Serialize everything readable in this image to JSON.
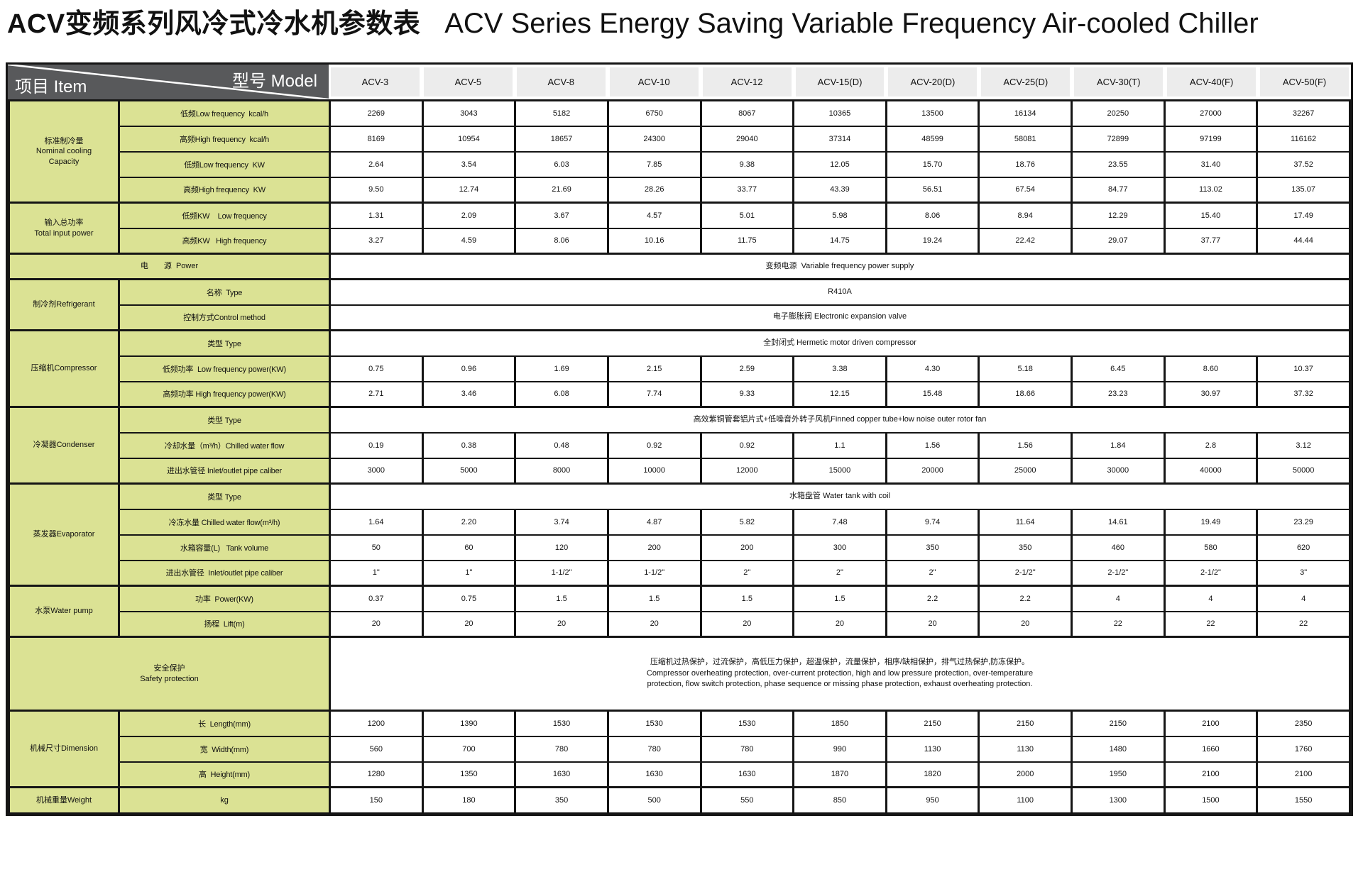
{
  "title": {
    "zh": "ACV变频系列风冷式冷水机参数表",
    "en": "ACV Series Energy Saving Variable Frequency Air-cooled Chiller"
  },
  "colors": {
    "header_dark": "#58595b",
    "header_light": "#ececec",
    "label_green": "#dbe294",
    "border": "#151515"
  },
  "table": {
    "corner": {
      "model_label": "型号  Model",
      "item_label": "项目  Item"
    },
    "models": [
      "ACV-3",
      "ACV-5",
      "ACV-8",
      "ACV-10",
      "ACV-12",
      "ACV-15(D)",
      "ACV-20(D)",
      "ACV-25(D)",
      "ACV-30(T)",
      "ACV-40(F)",
      "ACV-50(F)"
    ],
    "rows": [
      {
        "cat": "标准制冷量\nNominal cooling\nCapacity",
        "catspan": 4,
        "label": "低频Low frequency  kcal/h",
        "cells": [
          "2269",
          "3043",
          "5182",
          "6750",
          "8067",
          "10365",
          "13500",
          "16134",
          "20250",
          "27000",
          "32267"
        ]
      },
      {
        "label": "高频High frequency  kcal/h",
        "cells": [
          "8169",
          "10954",
          "18657",
          "24300",
          "29040",
          "37314",
          "48599",
          "58081",
          "72899",
          "97199",
          "116162"
        ]
      },
      {
        "label": "低频Low frequency  KW",
        "cells": [
          "2.64",
          "3.54",
          "6.03",
          "7.85",
          "9.38",
          "12.05",
          "15.70",
          "18.76",
          "23.55",
          "31.40",
          "37.52"
        ]
      },
      {
        "label": "高频High frequency  KW",
        "cells": [
          "9.50",
          "12.74",
          "21.69",
          "28.26",
          "33.77",
          "43.39",
          "56.51",
          "67.54",
          "84.77",
          "113.02",
          "135.07"
        ]
      },
      {
        "cat": "输入总功率\nTotal input power",
        "catspan": 2,
        "sect": true,
        "label": "低频KW    Low frequency",
        "cells": [
          "1.31",
          "2.09",
          "3.67",
          "4.57",
          "5.01",
          "5.98",
          "8.06",
          "8.94",
          "12.29",
          "15.40",
          "17.49"
        ]
      },
      {
        "label": "高频KW   High frequency",
        "cells": [
          "3.27",
          "4.59",
          "8.06",
          "10.16",
          "11.75",
          "14.75",
          "19.24",
          "22.42",
          "29.07",
          "37.77",
          "44.44"
        ]
      },
      {
        "wide": "电　　源  Power",
        "sect": true,
        "merged": "变频电源  Variable frequency power supply"
      },
      {
        "cat": "制冷剂Refrigerant",
        "catspan": 2,
        "sect": true,
        "label": "名称  Type",
        "merged": "R410A"
      },
      {
        "label": "控制方式Control method",
        "merged": "电子膨胀阀 Electronic expansion valve"
      },
      {
        "cat": "压缩机Compressor",
        "catspan": 3,
        "sect": true,
        "label": "类型 Type",
        "merged": "全封闭式 Hermetic motor driven compressor"
      },
      {
        "label": "低频功率  Low frequency power(KW)",
        "cells": [
          "0.75",
          "0.96",
          "1.69",
          "2.15",
          "2.59",
          "3.38",
          "4.30",
          "5.18",
          "6.45",
          "8.60",
          "10.37"
        ]
      },
      {
        "label": "高频功率 High frequency power(KW)",
        "cells": [
          "2.71",
          "3.46",
          "6.08",
          "7.74",
          "9.33",
          "12.15",
          "15.48",
          "18.66",
          "23.23",
          "30.97",
          "37.32"
        ]
      },
      {
        "cat": "冷凝器Condenser",
        "catspan": 3,
        "sect": true,
        "label": "类型 Type",
        "merged": "高效紫铜管套铝片式+低噪音外转子风机Finned copper tube+low noise outer rotor fan"
      },
      {
        "label": "冷却水量（m³/h）Chilled water flow",
        "cells": [
          "0.19",
          "0.38",
          "0.48",
          "0.92",
          "0.92",
          "1.1",
          "1.56",
          "1.56",
          "1.84",
          "2.8",
          "3.12"
        ]
      },
      {
        "label": "进出水管径 Inlet/outlet pipe caliber",
        "cells": [
          "3000",
          "5000",
          "8000",
          "10000",
          "12000",
          "15000",
          "20000",
          "25000",
          "30000",
          "40000",
          "50000"
        ]
      },
      {
        "cat": "蒸发器Evaporator",
        "catspan": 4,
        "sect": true,
        "label": "类型 Type",
        "merged": "水箱盘管 Water tank with coil"
      },
      {
        "label": "冷冻水量 Chilled water flow(m³/h)",
        "cells": [
          "1.64",
          "2.20",
          "3.74",
          "4.87",
          "5.82",
          "7.48",
          "9.74",
          "11.64",
          "14.61",
          "19.49",
          "23.29"
        ]
      },
      {
        "label": "水箱容量(L)   Tank volume",
        "cells": [
          "50",
          "60",
          "120",
          "200",
          "200",
          "300",
          "350",
          "350",
          "460",
          "580",
          "620"
        ]
      },
      {
        "label": "进出水管径  Inlet/outlet pipe caliber",
        "cells": [
          "1\"",
          "1\"",
          "1-1/2\"",
          "1-1/2\"",
          "2\"",
          "2\"",
          "2\"",
          "2-1/2\"",
          "2-1/2\"",
          "2-1/2\"",
          "3\""
        ]
      },
      {
        "cat": "水泵Water pump",
        "catspan": 2,
        "sect": true,
        "label": "功率  Power(KW)",
        "cells": [
          "0.37",
          "0.75",
          "1.5",
          "1.5",
          "1.5",
          "1.5",
          "2.2",
          "2.2",
          "4",
          "4",
          "4"
        ]
      },
      {
        "label": "扬程  Lift(m)",
        "cells": [
          "20",
          "20",
          "20",
          "20",
          "20",
          "20",
          "20",
          "20",
          "22",
          "22",
          "22"
        ]
      },
      {
        "wide": "安全保护\nSafety protection",
        "sect": true,
        "tall": true,
        "merged": "压缩机过热保护，过流保护，高低压力保护，超温保护，流量保护，相序/缺相保护，排气过热保护,防冻保护。\nCompressor overheating protection, over-current protection, high and low pressure protection, over-temperature\nprotection, flow switch protection, phase sequence or missing phase protection, exhaust overheating protection."
      },
      {
        "cat": "机械尺寸Dimension",
        "catspan": 3,
        "sect": true,
        "label": "长  Length(mm)",
        "cells": [
          "1200",
          "1390",
          "1530",
          "1530",
          "1530",
          "1850",
          "2150",
          "2150",
          "2150",
          "2100",
          "2350"
        ]
      },
      {
        "label": "宽  Width(mm)",
        "cells": [
          "560",
          "700",
          "780",
          "780",
          "780",
          "990",
          "1130",
          "1130",
          "1480",
          "1660",
          "1760"
        ]
      },
      {
        "label": "高  Height(mm)",
        "cells": [
          "1280",
          "1350",
          "1630",
          "1630",
          "1630",
          "1870",
          "1820",
          "2000",
          "1950",
          "2100",
          "2100"
        ]
      },
      {
        "cat": "机械重量Weight",
        "catspan": 1,
        "sect": true,
        "label": "kg",
        "cells": [
          "150",
          "180",
          "350",
          "500",
          "550",
          "850",
          "950",
          "1100",
          "1300",
          "1500",
          "1550"
        ]
      }
    ]
  }
}
